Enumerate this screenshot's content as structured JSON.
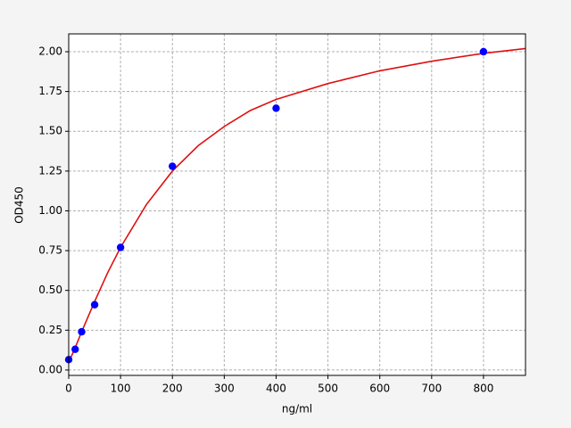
{
  "chart_data": {
    "type": "scatter",
    "xlabel": "ng/ml",
    "ylabel": "OD450",
    "points": {
      "color": "#0000ff",
      "x": [
        0,
        12.5,
        25,
        50,
        100,
        200,
        400,
        800
      ],
      "values": [
        0.065,
        0.13,
        0.24,
        0.41,
        0.77,
        1.28,
        1.645,
        2.0
      ]
    },
    "curve": {
      "color": "#dd1111",
      "x": [
        0,
        10,
        25,
        50,
        75,
        100,
        150,
        200,
        250,
        300,
        350,
        400,
        500,
        600,
        700,
        800,
        881
      ],
      "values": [
        0.05,
        0.12,
        0.24,
        0.43,
        0.61,
        0.77,
        1.04,
        1.25,
        1.41,
        1.53,
        1.63,
        1.7,
        1.8,
        1.88,
        1.94,
        1.99,
        2.02
      ]
    },
    "xlim": [
      0,
      881
    ],
    "ylim": [
      -0.034,
      2.112
    ],
    "xticks": [
      0,
      100,
      200,
      300,
      400,
      500,
      600,
      700,
      800
    ],
    "yticks": [
      {
        "value": 0,
        "label": "0.00"
      },
      {
        "value": 0.25,
        "label": "0.25"
      },
      {
        "value": 0.5,
        "label": "0.50"
      },
      {
        "value": 0.75,
        "label": "0.75"
      },
      {
        "value": 1,
        "label": "1.00"
      },
      {
        "value": 1.25,
        "label": "1.25"
      },
      {
        "value": 1.5,
        "label": "1.50"
      },
      {
        "value": 1.75,
        "label": "1.75"
      },
      {
        "value": 2,
        "label": "2.00"
      }
    ],
    "grid": true
  }
}
